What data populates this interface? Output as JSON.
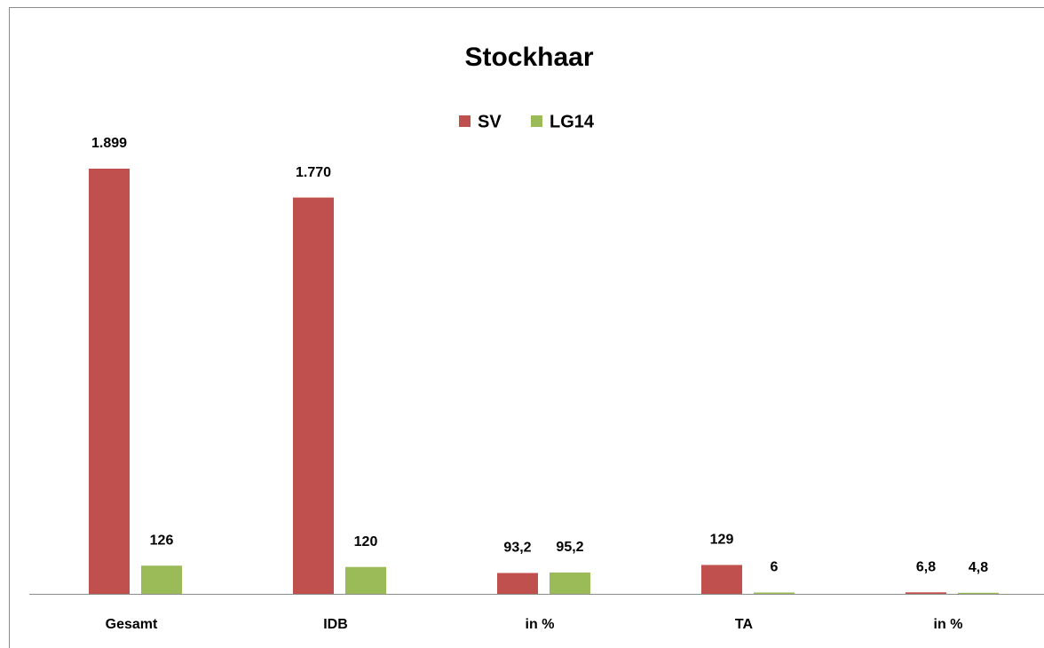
{
  "chart_data": {
    "type": "bar",
    "title": "Stockhaar",
    "categories": [
      "Gesamt",
      "IDB",
      "in %",
      "TA",
      "in %"
    ],
    "series": [
      {
        "name": "SV",
        "color": "#c0504d",
        "values": [
          1899,
          1770,
          93.2,
          129,
          6.8
        ],
        "value_labels": [
          "1.899",
          "1.770",
          "93,2",
          "129",
          "6,8"
        ]
      },
      {
        "name": "LG14",
        "color": "#9bbb59",
        "values": [
          126,
          120,
          95.2,
          6,
          4.8
        ],
        "value_labels": [
          "126",
          "120",
          "95,2",
          "6",
          "4,8"
        ]
      }
    ],
    "legend": "top"
  }
}
